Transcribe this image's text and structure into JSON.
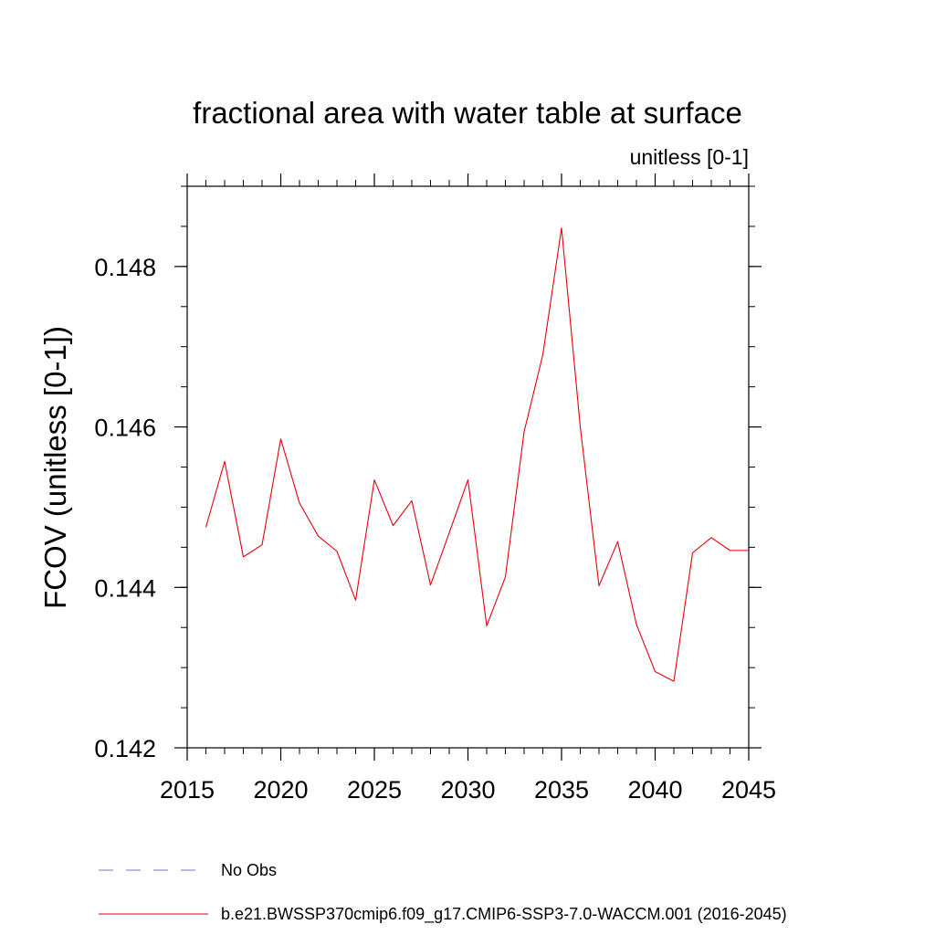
{
  "chart_data": {
    "type": "line",
    "title": "fractional area with water table at surface",
    "subtitle": "unitless [0-1]",
    "xlabel": "",
    "ylabel": "FCOV  (unitless [0-1])",
    "xlim": [
      2015,
      2045
    ],
    "ylim": [
      0.142,
      0.149
    ],
    "x_ticks": [
      2015,
      2020,
      2025,
      2030,
      2035,
      2040,
      2045
    ],
    "x_tick_labels": [
      "2015",
      "2020",
      "2025",
      "2030",
      "2035",
      "2040",
      "2045"
    ],
    "y_ticks": [
      0.142,
      0.144,
      0.146,
      0.148
    ],
    "y_tick_labels": [
      "0.142",
      "0.144",
      "0.146",
      "0.148"
    ],
    "y_minor_step": 0.0005,
    "x_minor_step": 1,
    "grid": false,
    "series": [
      {
        "name": "b.e21.BWSSP370cmip6.f09_g17.CMIP6-SSP3-7.0-WACCM.001 (2016-2045)",
        "color": "#e8000b",
        "style": "solid",
        "x": [
          2016,
          2017,
          2018,
          2019,
          2020,
          2021,
          2022,
          2023,
          2024,
          2025,
          2026,
          2027,
          2028,
          2029,
          2030,
          2031,
          2032,
          2033,
          2034,
          2035,
          2036,
          2037,
          2038,
          2039,
          2040,
          2041,
          2042,
          2043,
          2044,
          2045
        ],
        "values": [
          0.14475,
          0.14557,
          0.14438,
          0.14453,
          0.14585,
          0.14505,
          0.14464,
          0.14445,
          0.14384,
          0.14534,
          0.14477,
          0.14508,
          0.14403,
          0.14468,
          0.14534,
          0.14352,
          0.14413,
          0.14594,
          0.1469,
          0.14848,
          0.146,
          0.14402,
          0.14457,
          0.14354,
          0.14295,
          0.14283,
          0.14443,
          0.14462,
          0.14446,
          0.14446
        ]
      }
    ],
    "legend": {
      "placement": "bottom",
      "entries": [
        {
          "label": "No Obs",
          "color": "#7b72c9",
          "style": "dashed"
        },
        {
          "label": "b.e21.BWSSP370cmip6.f09_g17.CMIP6-SSP3-7.0-WACCM.001 (2016-2045)",
          "color": "#e8000b",
          "style": "solid"
        }
      ]
    }
  }
}
